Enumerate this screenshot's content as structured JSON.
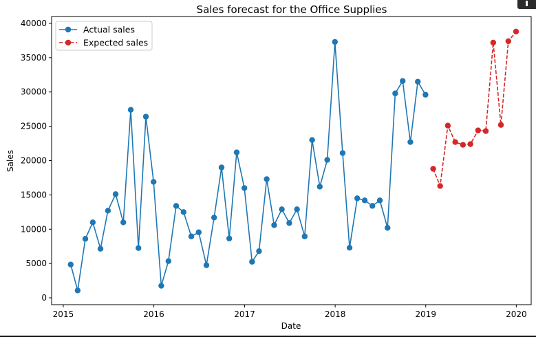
{
  "chart_data": {
    "type": "line",
    "title": "Sales forecast for the  Office Supplies",
    "xlabel": "Date",
    "ylabel": "Sales",
    "x_ticks": [
      "2015",
      "2016",
      "2017",
      "2018",
      "2019",
      "2020"
    ],
    "y_ticks": [
      "0",
      "5000",
      "10000",
      "15000",
      "20000",
      "25000",
      "30000",
      "35000",
      "40000"
    ],
    "xlim": [
      "2014-11-15",
      "2020-03-01"
    ],
    "ylim": [
      -1000,
      41000
    ],
    "grid": false,
    "legend_position": "top-left",
    "series": [
      {
        "name": "Actual sales",
        "color": "#1f77b4",
        "line_style": "solid",
        "marker": "circle",
        "points": [
          [
            "2015-01-31",
            4850
          ],
          [
            "2015-02-28",
            1070
          ],
          [
            "2015-03-31",
            8600
          ],
          [
            "2015-04-30",
            11000
          ],
          [
            "2015-05-31",
            7150
          ],
          [
            "2015-06-30",
            12700
          ],
          [
            "2015-07-31",
            15100
          ],
          [
            "2015-08-31",
            11000
          ],
          [
            "2015-09-30",
            27400
          ],
          [
            "2015-10-31",
            7250
          ],
          [
            "2015-11-30",
            26400
          ],
          [
            "2015-12-31",
            16900
          ],
          [
            "2016-01-31",
            1750
          ],
          [
            "2016-02-29",
            5350
          ],
          [
            "2016-03-31",
            13400
          ],
          [
            "2016-04-30",
            12500
          ],
          [
            "2016-05-31",
            8950
          ],
          [
            "2016-06-30",
            9550
          ],
          [
            "2016-07-31",
            4750
          ],
          [
            "2016-08-31",
            11700
          ],
          [
            "2016-09-30",
            19000
          ],
          [
            "2016-10-31",
            8650
          ],
          [
            "2016-11-30",
            21200
          ],
          [
            "2016-12-31",
            16000
          ],
          [
            "2017-01-31",
            5250
          ],
          [
            "2017-02-28",
            6800
          ],
          [
            "2017-03-31",
            17300
          ],
          [
            "2017-04-30",
            10600
          ],
          [
            "2017-05-31",
            12900
          ],
          [
            "2017-06-30",
            10900
          ],
          [
            "2017-07-31",
            12900
          ],
          [
            "2017-08-31",
            8950
          ],
          [
            "2017-09-30",
            23000
          ],
          [
            "2017-10-31",
            16200
          ],
          [
            "2017-11-30",
            20100
          ],
          [
            "2017-12-31",
            37300
          ],
          [
            "2018-01-31",
            21100
          ],
          [
            "2018-02-28",
            7300
          ],
          [
            "2018-03-31",
            14500
          ],
          [
            "2018-04-30",
            14200
          ],
          [
            "2018-05-31",
            13400
          ],
          [
            "2018-06-30",
            14200
          ],
          [
            "2018-07-31",
            10200
          ],
          [
            "2018-08-31",
            29800
          ],
          [
            "2018-09-30",
            31600
          ],
          [
            "2018-10-31",
            22700
          ],
          [
            "2018-11-30",
            31500
          ],
          [
            "2018-12-31",
            29600
          ]
        ]
      },
      {
        "name": "Expected sales",
        "color": "#d62728",
        "line_style": "dashed",
        "marker": "circle",
        "points": [
          [
            "2019-01-31",
            18800
          ],
          [
            "2019-02-28",
            16300
          ],
          [
            "2019-03-31",
            25100
          ],
          [
            "2019-04-30",
            22700
          ],
          [
            "2019-05-31",
            22300
          ],
          [
            "2019-06-30",
            22400
          ],
          [
            "2019-07-31",
            24400
          ],
          [
            "2019-08-31",
            24300
          ],
          [
            "2019-09-30",
            37200
          ],
          [
            "2019-10-31",
            25200
          ],
          [
            "2019-11-30",
            37400
          ],
          [
            "2019-12-31",
            38800
          ]
        ]
      }
    ]
  }
}
